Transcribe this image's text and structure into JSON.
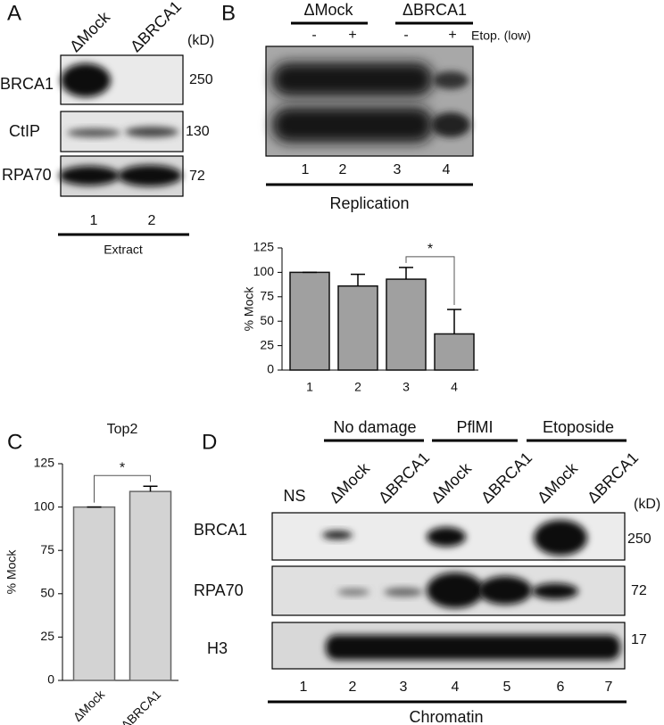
{
  "panels": {
    "A": {
      "label": "A",
      "lanes": [
        "ΔMock",
        "ΔBRCA1"
      ],
      "unit": "(kD)",
      "rows": [
        {
          "name": "BRCA1",
          "kd": "250"
        },
        {
          "name": "CtIP",
          "kd": "130"
        },
        {
          "name": "RPA70",
          "kd": "72"
        }
      ],
      "lane_numbers": [
        "1",
        "2"
      ],
      "footer": "Extract"
    },
    "B": {
      "label": "B",
      "groups": [
        "ΔMock",
        "ΔBRCA1"
      ],
      "treatments": [
        "-",
        "+",
        "-",
        "+"
      ],
      "treatment_label": "Etop. (low)",
      "lane_numbers": [
        "1",
        "2",
        "3",
        "4"
      ],
      "footer": "Replication"
    },
    "C": {
      "label": "C"
    },
    "D": {
      "label": "D",
      "groups": [
        "No damage",
        "PflMI",
        "Etoposide"
      ],
      "lanes": [
        "NS",
        "ΔMock",
        "ΔBRCA1",
        "ΔMock",
        "ΔBRCA1",
        "ΔMock",
        "ΔBRCA1"
      ],
      "unit": "(kD)",
      "rows": [
        {
          "name": "BRCA1",
          "kd": "250"
        },
        {
          "name": "RPA70",
          "kd": "72"
        },
        {
          "name": "H3",
          "kd": "17"
        }
      ],
      "lane_numbers": [
        "1",
        "2",
        "3",
        "4",
        "5",
        "6",
        "7"
      ],
      "footer": "Chromatin"
    }
  },
  "chart_data": [
    {
      "type": "bar",
      "ylabel": "% Mock",
      "categories": [
        "1",
        "2",
        "3",
        "4"
      ],
      "values": [
        100,
        86,
        93,
        37
      ],
      "errors": [
        0,
        12,
        12,
        25
      ],
      "color": "#a0a0a0",
      "ylim": [
        0,
        125
      ],
      "yticks": [
        0,
        25,
        50,
        75,
        100,
        125
      ],
      "grid": false,
      "annotations": [
        "*"
      ]
    },
    {
      "type": "bar",
      "title": "Top2",
      "ylabel": "% Mock",
      "categories": [
        "ΔMock",
        "ΔBRCA1"
      ],
      "values": [
        100,
        109
      ],
      "errors": [
        0,
        3
      ],
      "color": "#d3d3d3",
      "ylim": [
        0,
        125
      ],
      "yticks": [
        0,
        25,
        50,
        75,
        100,
        125
      ],
      "grid": false,
      "annotations": [
        "*"
      ]
    }
  ]
}
